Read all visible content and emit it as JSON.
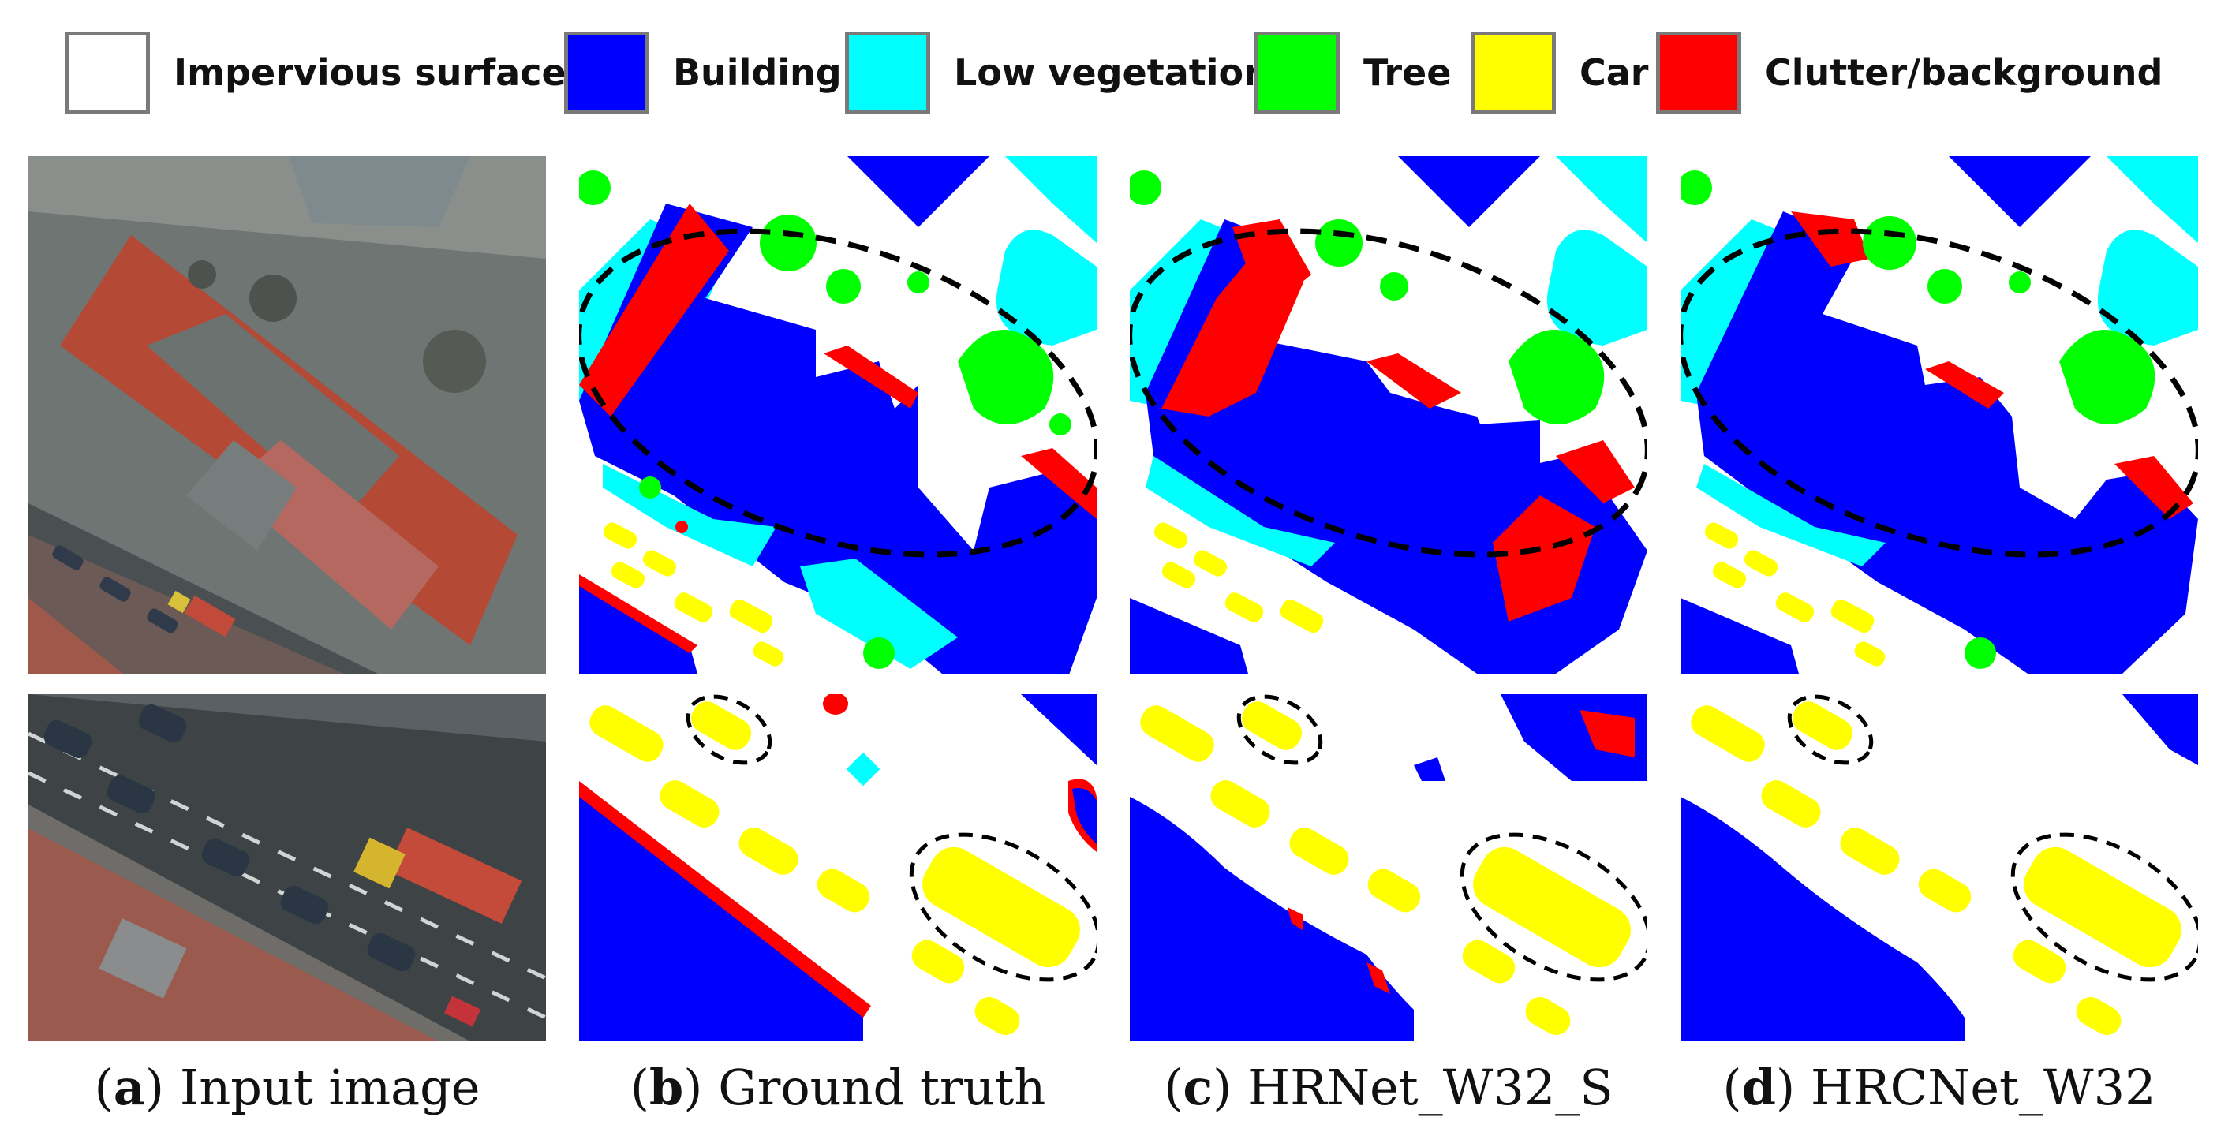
{
  "legend": [
    {
      "label": "Impervious surfaces",
      "color": "#ffffff"
    },
    {
      "label": "Building",
      "color": "#0000ff"
    },
    {
      "label": "Low vegetation",
      "color": "#00ffff"
    },
    {
      "label": "Tree",
      "color": "#00ff00"
    },
    {
      "label": "Car",
      "color": "#ffff00"
    },
    {
      "label": "Clutter/background",
      "color": "#ff0000"
    }
  ],
  "captions": [
    {
      "letter": "a",
      "text": "Input image"
    },
    {
      "letter": "b",
      "text": "Ground truth"
    },
    {
      "letter": "c",
      "text": "HRNet_W32_S"
    },
    {
      "letter": "d",
      "text": "HRCNet_W32"
    }
  ],
  "colors": {
    "impervious": "#ffffff",
    "building": "#0000ff",
    "low_vegetation": "#00ffff",
    "tree": "#00ff00",
    "car": "#ffff00",
    "clutter": "#ff0000"
  }
}
